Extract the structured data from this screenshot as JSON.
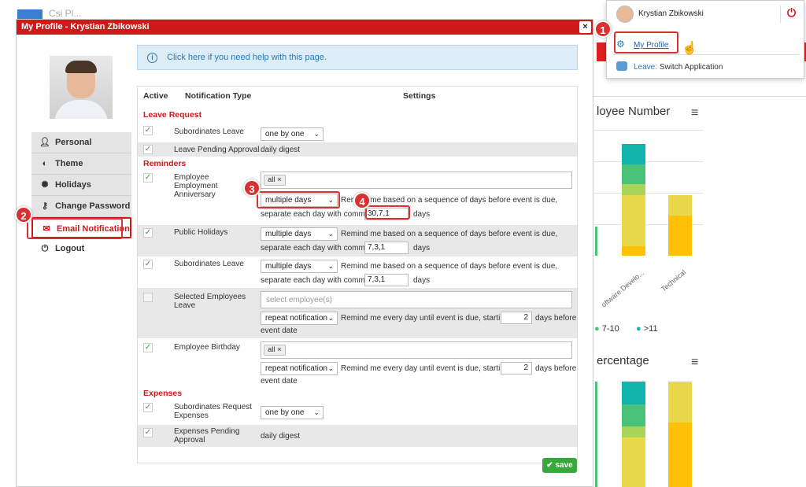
{
  "window": {
    "title": "My Profile - Krystian Zbikowski",
    "close_icon": "×"
  },
  "background": {
    "logo_text": "Csi Pl...",
    "chart1_title": "loyee Number",
    "chart2_title": "ercentage",
    "x_labels": [
      "oftware Develo...",
      "Technical"
    ],
    "legend": [
      "7-10",
      ">11"
    ]
  },
  "sidebar": {
    "items": [
      {
        "label": "Personal",
        "icon": "person-icon"
      },
      {
        "label": "Theme",
        "icon": "palette-icon"
      },
      {
        "label": "Holidays",
        "icon": "gear-icon"
      },
      {
        "label": "Change Password",
        "icon": "key-icon"
      },
      {
        "label": "Email Notification",
        "icon": "envelope-icon"
      },
      {
        "label": "Logout",
        "icon": "power-icon"
      }
    ]
  },
  "help": {
    "text": "Click here if you need help with this page."
  },
  "table": {
    "headers": {
      "active": "Active",
      "type": "Notification Type",
      "settings": "Settings"
    },
    "sections": {
      "leave": "Leave Request",
      "reminders": "Reminders",
      "expenses": "Expenses"
    },
    "rows": {
      "sub_leave": {
        "type": "Subordinates Leave",
        "value": "one by one"
      },
      "pending": {
        "type": "Leave Pending Approval",
        "value": "daily digest"
      },
      "anniv": {
        "type": "Employee Employment Anniversary",
        "tag": "all",
        "select": "multiple days",
        "desc1": "Remind me based on a sequence of days before event is due,",
        "desc2": "separate each day with comma:",
        "days": "30,7,1",
        "unit": "days"
      },
      "public": {
        "type": "Public Holidays",
        "select": "multiple days",
        "desc1": "Remind me based on a sequence of days before event is due,",
        "desc2": "separate each day with comma:",
        "days": "7,3,1",
        "unit": "days"
      },
      "sub_rem": {
        "type": "Subordinates Leave",
        "select": "multiple days",
        "desc1": "Remind me based on a sequence of days before event is due,",
        "desc2": "separate each day with comma:",
        "days": "7,3,1",
        "unit": "days"
      },
      "selected": {
        "type": "Selected Employees Leave",
        "placeholder": "select employee(s)",
        "select": "repeat notification",
        "desc1": "Remind me every day until event is due, starting",
        "num": "2",
        "desc2": "days before",
        "desc3": "event date"
      },
      "birthday": {
        "type": "Employee Birthday",
        "tag": "all",
        "select": "repeat notification",
        "desc1": "Remind me every day until event is due, starting",
        "num": "2",
        "desc2": "days before",
        "desc3": "event date"
      },
      "exp_req": {
        "type": "Subordinates Request Expenses",
        "value": "one by one"
      },
      "exp_pend": {
        "type": "Expenses Pending Approval",
        "value": "daily digest"
      }
    }
  },
  "save": {
    "label": "✔ save"
  },
  "dropdown": {
    "user_name": "Krystian Zbikowski",
    "my_profile": "My Profile",
    "leave_app": "Leave:",
    "switch": "Switch Application"
  },
  "badges": [
    "1",
    "2",
    "3",
    "4"
  ],
  "colors": {
    "brand_red": "#cf1a1a",
    "save_green": "#38a83a",
    "highlight": "#d93030"
  }
}
